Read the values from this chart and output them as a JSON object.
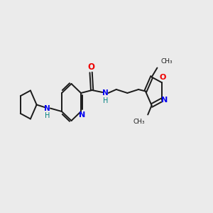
{
  "bg_color": "#ebebeb",
  "bond_color": "#1a1a1a",
  "N_color": "#0000ee",
  "O_color": "#ee0000",
  "NH_color": "#008080",
  "line_width": 1.4,
  "fig_size": [
    3.0,
    3.0
  ],
  "dpi": 100,
  "xlim": [
    0,
    10
  ],
  "ylim": [
    2,
    8
  ]
}
